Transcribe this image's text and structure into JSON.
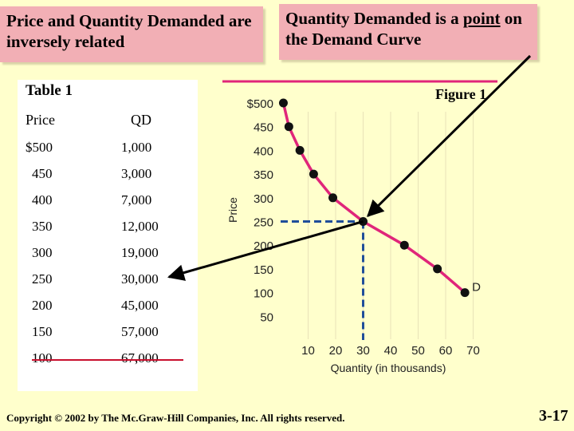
{
  "slide": {
    "title_left": "Price and Quantity Demanded are inversely related",
    "title_right_prefix": "Quantity Demanded is a ",
    "title_right_point": "point",
    "title_right_suffix": " on the Demand Curve",
    "copyright": "Copyright © 2002 by The Mc.Graw-Hill Companies, Inc. All rights reserved.",
    "slide_number": "3-17",
    "accent_color": "#F2AFB5",
    "background_color": "#FFFFCC"
  },
  "table": {
    "title": "Table 1",
    "headers": [
      "Price",
      "QD"
    ],
    "rows": [
      [
        "$500",
        "1,000"
      ],
      [
        "450",
        "3,000"
      ],
      [
        "400",
        "7,000"
      ],
      [
        "350",
        "12,000"
      ],
      [
        "300",
        "19,000"
      ],
      [
        "250",
        "30,000"
      ],
      [
        "200",
        "45,000"
      ],
      [
        "150",
        "57,000"
      ],
      [
        "100",
        "67,000"
      ]
    ]
  },
  "chart_data": {
    "type": "line",
    "figure_label": "Figure 1",
    "xlabel": "Quantity (in thousands)",
    "ylabel": "Price",
    "x_ticks": [
      "10",
      "20",
      "30",
      "40",
      "50",
      "60",
      "70"
    ],
    "y_ticks": [
      "$500",
      "450",
      "400",
      "350",
      "300",
      "250",
      "200",
      "150",
      "100",
      "50"
    ],
    "xlim": [
      0,
      75
    ],
    "ylim": [
      25,
      525
    ],
    "series": [
      {
        "name": "D",
        "x": [
          1,
          3,
          7,
          12,
          19,
          30,
          45,
          57,
          67
        ],
        "y": [
          500,
          450,
          400,
          350,
          300,
          250,
          200,
          150,
          100
        ],
        "color": "#E0257A"
      }
    ],
    "highlight_point": {
      "x": 30,
      "y": 250
    },
    "line_color": "#E0257A",
    "highlight_color": "#1F4E9A"
  }
}
